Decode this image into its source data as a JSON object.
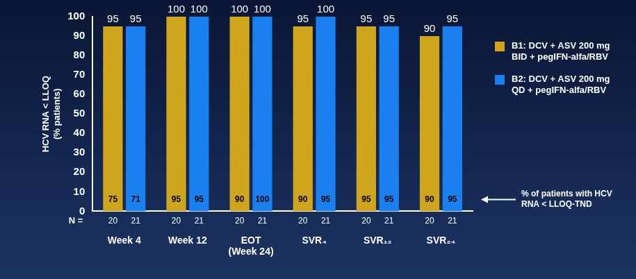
{
  "chart_data": {
    "type": "bar",
    "y_label": [
      "HCV RNA < LLOQ",
      "(% patients)"
    ],
    "categories": [
      "Week 4",
      "Week 12",
      [
        "EOT",
        "(Week 24)"
      ],
      "SVR₄",
      "SVR₁₂",
      "SVR₂₄"
    ],
    "series": [
      {
        "name": "B1: DCV + ASV 200 mg BID + pegIFN-alfa/RBV",
        "color": "#cfa51e",
        "values": [
          95,
          100,
          100,
          95,
          95,
          90
        ],
        "tnd_values": [
          75,
          95,
          90,
          90,
          95,
          90
        ],
        "n": [
          20,
          20,
          20,
          20,
          20,
          20
        ]
      },
      {
        "name": "B2: DCV + ASV 200 mg QD + pegIFN-alfa/RBV",
        "color": "#1a80f0",
        "values": [
          95,
          100,
          100,
          100,
          95,
          95
        ],
        "tnd_values": [
          71,
          95,
          100,
          95,
          95,
          95
        ],
        "n": [
          21,
          21,
          21,
          21,
          21,
          21
        ]
      }
    ],
    "n_label": "N =",
    "annotation": "% of patients with HCV RNA < LLOQ-TND",
    "ylim": [
      0,
      100
    ],
    "yticks": [
      0,
      10,
      20,
      30,
      40,
      50,
      60,
      70,
      80,
      90,
      100
    ],
    "grid": false,
    "legend": "right",
    "data_labels": true
  }
}
